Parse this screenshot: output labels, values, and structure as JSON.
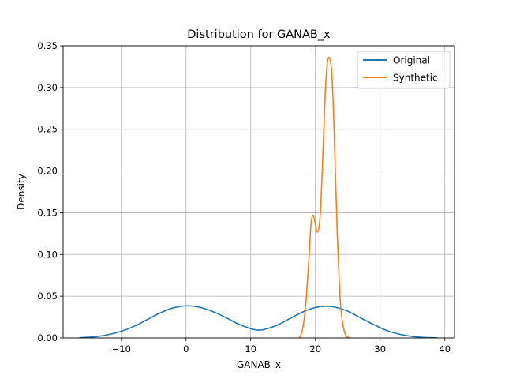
{
  "chart_data": {
    "type": "line",
    "title": "Distribution for GANAB_x",
    "xlabel": "GANAB_x",
    "ylabel": "Density",
    "xlim": [
      -19,
      41.5
    ],
    "ylim": [
      0,
      0.35
    ],
    "grid": true,
    "legend_position": "top-right",
    "xticks": [
      -10,
      0,
      10,
      20,
      30,
      40
    ],
    "xtick_labels": [
      "−10",
      "0",
      "10",
      "20",
      "30",
      "40"
    ],
    "yticks": [
      0.0,
      0.05,
      0.1,
      0.15,
      0.2,
      0.25,
      0.3,
      0.35
    ],
    "ytick_labels": [
      "0.00",
      "0.05",
      "0.10",
      "0.15",
      "0.20",
      "0.25",
      "0.30",
      "0.35"
    ],
    "series": [
      {
        "name": "Original",
        "color": "#1f77b4",
        "x": [
          -16.5,
          -14,
          -12,
          -10,
          -8,
          -6,
          -4,
          -2,
          0,
          2,
          4,
          6,
          8,
          10,
          11,
          12,
          14,
          16,
          18,
          20,
          21.5,
          23,
          25,
          27,
          29,
          31,
          33,
          35,
          37,
          38.8
        ],
        "y": [
          0.0003,
          0.0015,
          0.004,
          0.008,
          0.014,
          0.022,
          0.03,
          0.036,
          0.0385,
          0.037,
          0.032,
          0.025,
          0.017,
          0.011,
          0.0095,
          0.01,
          0.015,
          0.023,
          0.031,
          0.0365,
          0.038,
          0.037,
          0.032,
          0.024,
          0.016,
          0.009,
          0.0045,
          0.0018,
          0.0005,
          0.0002
        ]
      },
      {
        "name": "Synthetic",
        "color": "#ff7f0e",
        "x": [
          17.5,
          18.0,
          18.5,
          19.0,
          19.3,
          19.6,
          19.9,
          20.2,
          20.4,
          20.6,
          20.8,
          21.0,
          21.3,
          21.6,
          21.9,
          22.2,
          22.5,
          22.8,
          23.1,
          23.4,
          23.7,
          24.0,
          24.4,
          24.8,
          25.3
        ],
        "y": [
          0.0,
          0.01,
          0.04,
          0.095,
          0.135,
          0.147,
          0.14,
          0.128,
          0.128,
          0.135,
          0.155,
          0.19,
          0.25,
          0.305,
          0.332,
          0.335,
          0.32,
          0.27,
          0.195,
          0.12,
          0.065,
          0.03,
          0.01,
          0.002,
          0.0
        ]
      }
    ]
  }
}
